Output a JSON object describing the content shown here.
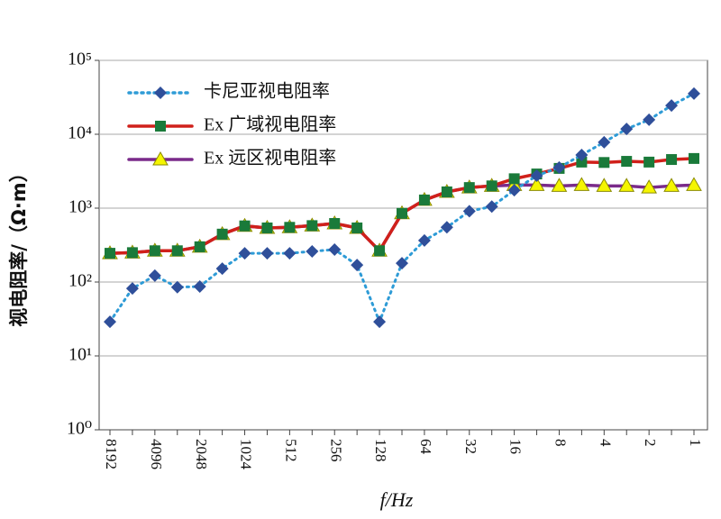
{
  "chart_data": {
    "type": "line",
    "categories": [
      "8192",
      null,
      "4096",
      null,
      "2048",
      null,
      "1024",
      null,
      "512",
      null,
      "256",
      null,
      "128",
      null,
      "64",
      null,
      "32",
      null,
      "16",
      null,
      "8",
      null,
      "4",
      null,
      "2",
      null,
      "1"
    ],
    "series": [
      {
        "name": "卡尼亚视电阻率",
        "color": "#2e9bd6",
        "marker": "diamond",
        "marker_color": "#2f4f9a",
        "line_style": "dotted",
        "values": [
          29,
          82,
          122,
          85,
          87,
          152,
          245,
          245,
          245,
          260,
          275,
          170,
          29,
          180,
          365,
          550,
          910,
          1050,
          1750,
          2750,
          3550,
          5250,
          7800,
          11800,
          15700,
          24500,
          35500
        ]
      },
      {
        "name": "Ex 广域视电阻率",
        "color": "#d0201a",
        "marker": "square",
        "marker_color": "#1a7a3a",
        "line_style": "solid",
        "values": [
          245,
          250,
          265,
          265,
          300,
          445,
          575,
          540,
          550,
          580,
          620,
          540,
          265,
          850,
          1290,
          1660,
          1900,
          2000,
          2500,
          2900,
          3450,
          4200,
          4150,
          4300,
          4200,
          4550,
          4700
        ]
      },
      {
        "name": "Ex 远区视电阻率",
        "color": "#7a2a8a",
        "marker": "triangle",
        "marker_color": "#f5f500",
        "line_style": "solid",
        "values": [
          245,
          250,
          265,
          265,
          300,
          445,
          575,
          540,
          550,
          580,
          620,
          540,
          265,
          850,
          1290,
          1660,
          1900,
          2000,
          2050,
          2050,
          2000,
          2050,
          2000,
          2000,
          1900,
          2000,
          2050
        ]
      }
    ],
    "x_label": "f/Hz",
    "y_label": "视电阻率/（Ω·m）",
    "log_y": true,
    "ylim": [
      1,
      100000
    ],
    "yticks": [
      {
        "value": 1,
        "label": "10⁰"
      },
      {
        "value": 10,
        "label": "10¹"
      },
      {
        "value": 100,
        "label": "10²"
      },
      {
        "value": 1000,
        "label": "10³"
      },
      {
        "value": 10000,
        "label": "10⁴"
      },
      {
        "value": 100000,
        "label": "10⁵"
      }
    ],
    "grid": true,
    "legend": "upper left"
  }
}
